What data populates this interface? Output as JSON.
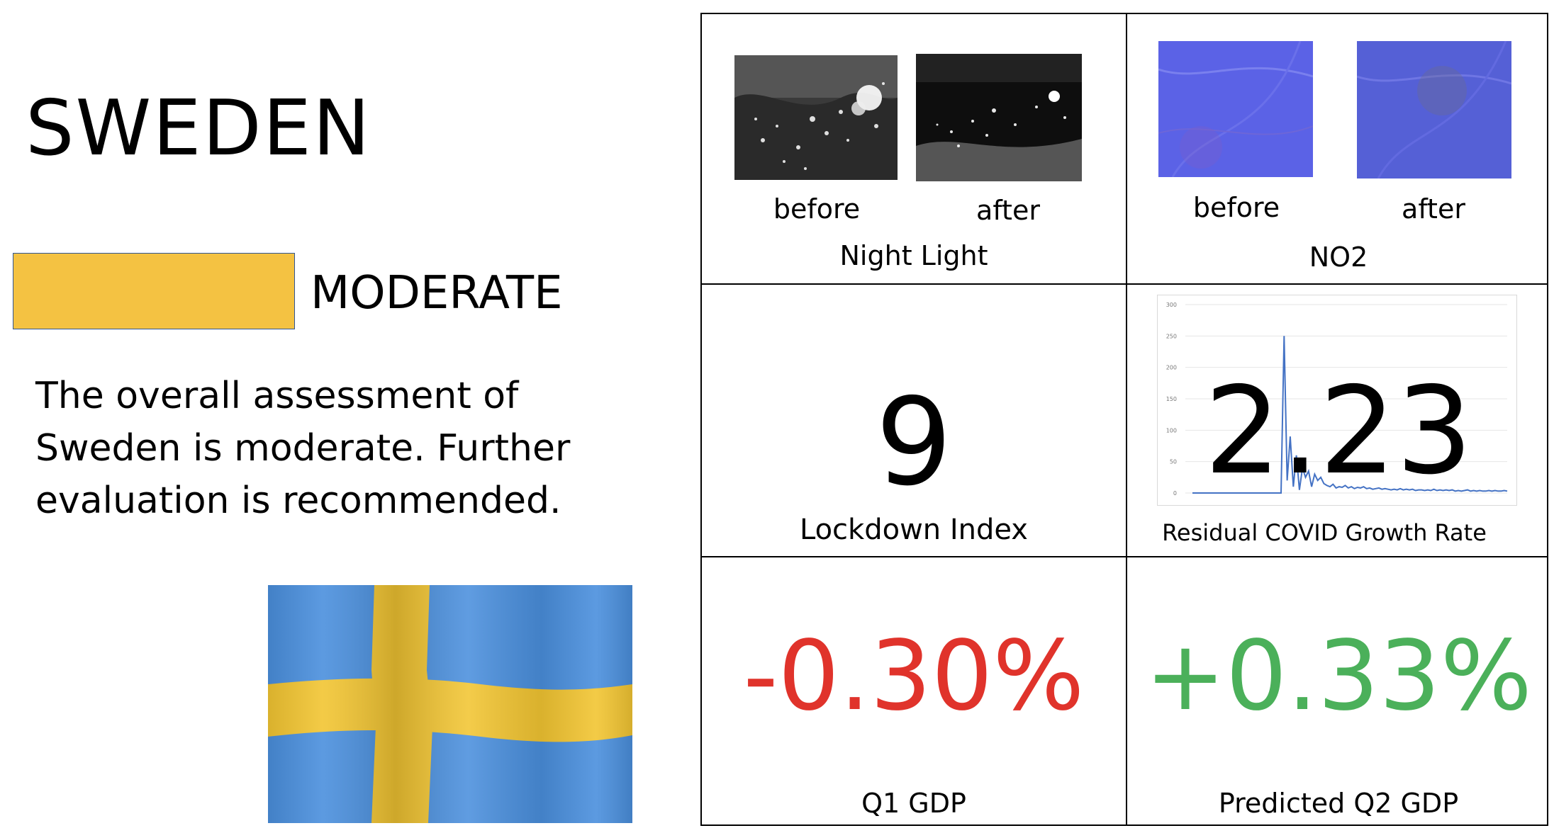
{
  "country": "SWEDEN",
  "assessment": {
    "level": "MODERATE",
    "color": "#f4c242",
    "description": "The overall assessment of Sweden is moderate. Further evaluation is recommended."
  },
  "flag": {
    "field_color": "#4a8fdd",
    "cross_color": "#f2c532"
  },
  "night_light": {
    "label": "Night Light",
    "before": "before",
    "after": "after"
  },
  "no2": {
    "label": "NO2",
    "before": "before",
    "after": "after"
  },
  "lockdown": {
    "value": "9",
    "label": "Lockdown Index"
  },
  "covid": {
    "value": "2.23",
    "label": "Residual COVID Growth Rate",
    "chart_data": {
      "type": "line",
      "yticks": [
        "300",
        "250",
        "200",
        "150",
        "100",
        "50",
        "0"
      ],
      "ylim": [
        0,
        300
      ],
      "series_color": "#4472c4",
      "values": [
        0,
        0,
        0,
        0,
        0,
        0,
        0,
        0,
        0,
        0,
        0,
        0,
        0,
        0,
        0,
        0,
        0,
        0,
        0,
        0,
        0,
        0,
        0,
        0,
        0,
        0,
        0,
        0,
        0,
        0,
        250,
        20,
        90,
        10,
        60,
        5,
        40,
        25,
        35,
        10,
        30,
        20,
        25,
        15,
        12,
        10,
        14,
        8,
        10,
        9,
        12,
        8,
        10,
        7,
        9,
        8,
        10,
        7,
        8,
        6,
        7,
        8,
        6,
        7,
        6,
        5,
        6,
        5,
        7,
        5,
        6,
        5,
        6,
        4,
        5,
        5,
        4,
        5,
        4,
        6,
        4,
        5,
        4,
        5,
        4,
        5,
        3,
        4,
        3,
        4,
        5,
        3,
        4,
        3,
        4,
        3,
        3,
        4,
        3,
        4,
        3,
        3,
        4,
        3
      ]
    }
  },
  "q1_gdp": {
    "value": "-0.30%",
    "label": "Q1 GDP",
    "color": "#e0332b"
  },
  "q2_gdp": {
    "value": "+0.33%",
    "label": "Predicted Q2 GDP",
    "color": "#4bb05a"
  }
}
